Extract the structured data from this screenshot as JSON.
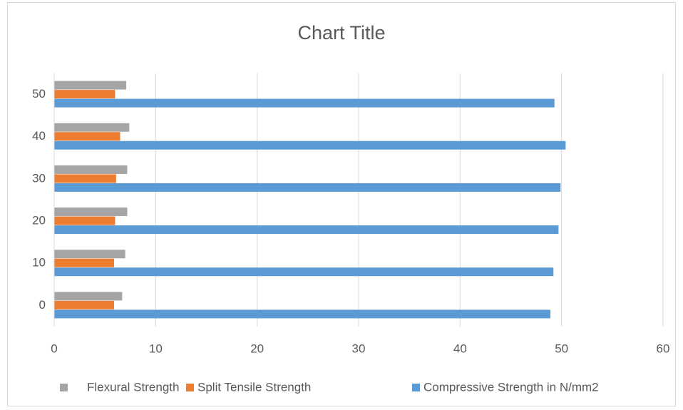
{
  "chart_data": {
    "type": "bar",
    "orientation": "horizontal",
    "title": "Chart Title",
    "categories": [
      "0",
      "10",
      "20",
      "30",
      "40",
      "50"
    ],
    "series": [
      {
        "name": "Flexural Strength",
        "color": "#a5a5a5",
        "values": [
          6.7,
          7.0,
          7.2,
          7.2,
          7.4,
          7.1
        ]
      },
      {
        "name": "Split Tensile Strength",
        "color": "#ed7d31",
        "values": [
          5.9,
          5.9,
          6.0,
          6.1,
          6.5,
          6.0
        ]
      },
      {
        "name": "Compressive Strength in N/mm2",
        "color": "#5b9bd5",
        "values": [
          48.9,
          49.2,
          49.7,
          49.9,
          50.4,
          49.3
        ]
      }
    ],
    "xlim": [
      0,
      60
    ],
    "xticks": [
      0,
      10,
      20,
      30,
      40,
      50,
      60
    ],
    "grid": true,
    "legend": "bottom"
  }
}
